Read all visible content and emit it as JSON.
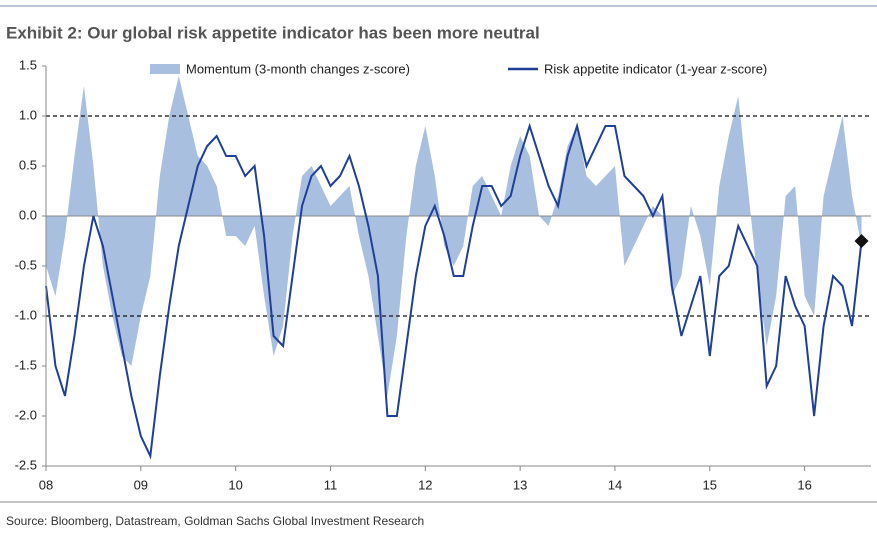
{
  "chart_data": {
    "type": "line",
    "title": "Exhibit 2: Our global risk appetite indicator has been more neutral",
    "source": "Source: Bloomberg, Datastream, Goldman Sachs Global Investment Research",
    "x": [
      2008.0,
      2008.1,
      2008.2,
      2008.3,
      2008.4,
      2008.5,
      2008.6,
      2008.7,
      2008.8,
      2008.9,
      2009.0,
      2009.1,
      2009.2,
      2009.3,
      2009.4,
      2009.5,
      2009.6,
      2009.7,
      2009.8,
      2009.9,
      2010.0,
      2010.1,
      2010.2,
      2010.3,
      2010.4,
      2010.5,
      2010.6,
      2010.7,
      2010.8,
      2010.9,
      2011.0,
      2011.1,
      2011.2,
      2011.3,
      2011.4,
      2011.5,
      2011.6,
      2011.7,
      2011.8,
      2011.9,
      2012.0,
      2012.1,
      2012.2,
      2012.3,
      2012.4,
      2012.5,
      2012.6,
      2012.7,
      2012.8,
      2012.9,
      2013.0,
      2013.1,
      2013.2,
      2013.3,
      2013.4,
      2013.5,
      2013.6,
      2013.7,
      2013.8,
      2013.9,
      2014.0,
      2014.1,
      2014.2,
      2014.3,
      2014.4,
      2014.5,
      2014.6,
      2014.7,
      2014.8,
      2014.9,
      2015.0,
      2015.1,
      2015.2,
      2015.3,
      2015.4,
      2015.5,
      2015.6,
      2015.7,
      2015.8,
      2015.9,
      2016.0,
      2016.1,
      2016.2,
      2016.3,
      2016.4,
      2016.5,
      2016.6
    ],
    "series": [
      {
        "name": "Momentum (3-month changes z-score)",
        "color": "#a9bfdf",
        "style": "area",
        "values": [
          -0.5,
          -0.8,
          -0.2,
          0.6,
          1.3,
          0.5,
          -0.5,
          -1.0,
          -1.4,
          -1.5,
          -1.0,
          -0.6,
          0.4,
          1.0,
          1.4,
          1.0,
          0.6,
          0.5,
          0.3,
          -0.2,
          -0.2,
          -0.3,
          -0.1,
          -0.8,
          -1.4,
          -1.1,
          -0.2,
          0.4,
          0.5,
          0.3,
          0.1,
          0.2,
          0.3,
          -0.2,
          -0.6,
          -1.2,
          -1.8,
          -1.2,
          -0.2,
          0.5,
          0.9,
          0.4,
          -0.3,
          -0.5,
          -0.3,
          0.3,
          0.4,
          0.2,
          0.0,
          0.5,
          0.8,
          0.6,
          0.0,
          -0.1,
          0.2,
          0.7,
          0.9,
          0.4,
          0.3,
          0.4,
          0.5,
          -0.5,
          -0.3,
          -0.1,
          0.1,
          0.0,
          -0.8,
          -0.6,
          0.1,
          -0.2,
          -0.7,
          0.3,
          0.8,
          1.2,
          0.3,
          -0.6,
          -1.3,
          -0.8,
          0.2,
          0.3,
          -0.8,
          -1.0,
          0.2,
          0.6,
          1.0,
          0.2,
          -0.3
        ]
      },
      {
        "name": "Risk appetite indicator (1-year z-score)",
        "color": "#1f3f99",
        "style": "line",
        "values": [
          -0.7,
          -1.5,
          -1.8,
          -1.2,
          -0.5,
          0.0,
          -0.3,
          -0.8,
          -1.3,
          -1.8,
          -2.2,
          -2.4,
          -1.6,
          -0.9,
          -0.3,
          0.1,
          0.5,
          0.7,
          0.8,
          0.6,
          0.6,
          0.4,
          0.5,
          -0.2,
          -1.2,
          -1.3,
          -0.6,
          0.1,
          0.4,
          0.5,
          0.3,
          0.4,
          0.6,
          0.3,
          -0.1,
          -0.6,
          -2.0,
          -2.0,
          -1.3,
          -0.6,
          -0.1,
          0.1,
          -0.2,
          -0.6,
          -0.6,
          -0.1,
          0.3,
          0.3,
          0.1,
          0.2,
          0.6,
          0.9,
          0.6,
          0.3,
          0.1,
          0.6,
          0.9,
          0.5,
          0.7,
          0.9,
          0.9,
          0.4,
          0.3,
          0.2,
          0.0,
          0.2,
          -0.7,
          -1.2,
          -0.9,
          -0.6,
          -1.4,
          -0.6,
          -0.5,
          -0.1,
          -0.3,
          -0.5,
          -1.7,
          -1.5,
          -0.6,
          -0.9,
          -1.1,
          -2.0,
          -1.1,
          -0.6,
          -0.7,
          -1.1,
          -0.25
        ]
      }
    ],
    "xlim": [
      2008.0,
      2016.7
    ],
    "xticks": [
      {
        "value": 2008,
        "label": "08"
      },
      {
        "value": 2009,
        "label": "09"
      },
      {
        "value": 2010,
        "label": "10"
      },
      {
        "value": 2011,
        "label": "11"
      },
      {
        "value": 2012,
        "label": "12"
      },
      {
        "value": 2013,
        "label": "13"
      },
      {
        "value": 2014,
        "label": "14"
      },
      {
        "value": 2015,
        "label": "15"
      },
      {
        "value": 2016,
        "label": "16"
      }
    ],
    "ylim": [
      -2.5,
      1.5
    ],
    "yticks": [
      {
        "value": 1.5,
        "label": "1.5"
      },
      {
        "value": 1.0,
        "label": "1.0"
      },
      {
        "value": 0.5,
        "label": "0.5"
      },
      {
        "value": 0.0,
        "label": "0.0"
      },
      {
        "value": -0.5,
        "label": "-0.5"
      },
      {
        "value": -1.0,
        "label": "-1.0"
      },
      {
        "value": -1.5,
        "label": "-1.5"
      },
      {
        "value": -2.0,
        "label": "-2.0"
      },
      {
        "value": -2.5,
        "label": "-2.5"
      }
    ],
    "reference_lines": [
      1.0,
      -1.0
    ],
    "last_point_marker": true,
    "legend": "top"
  }
}
